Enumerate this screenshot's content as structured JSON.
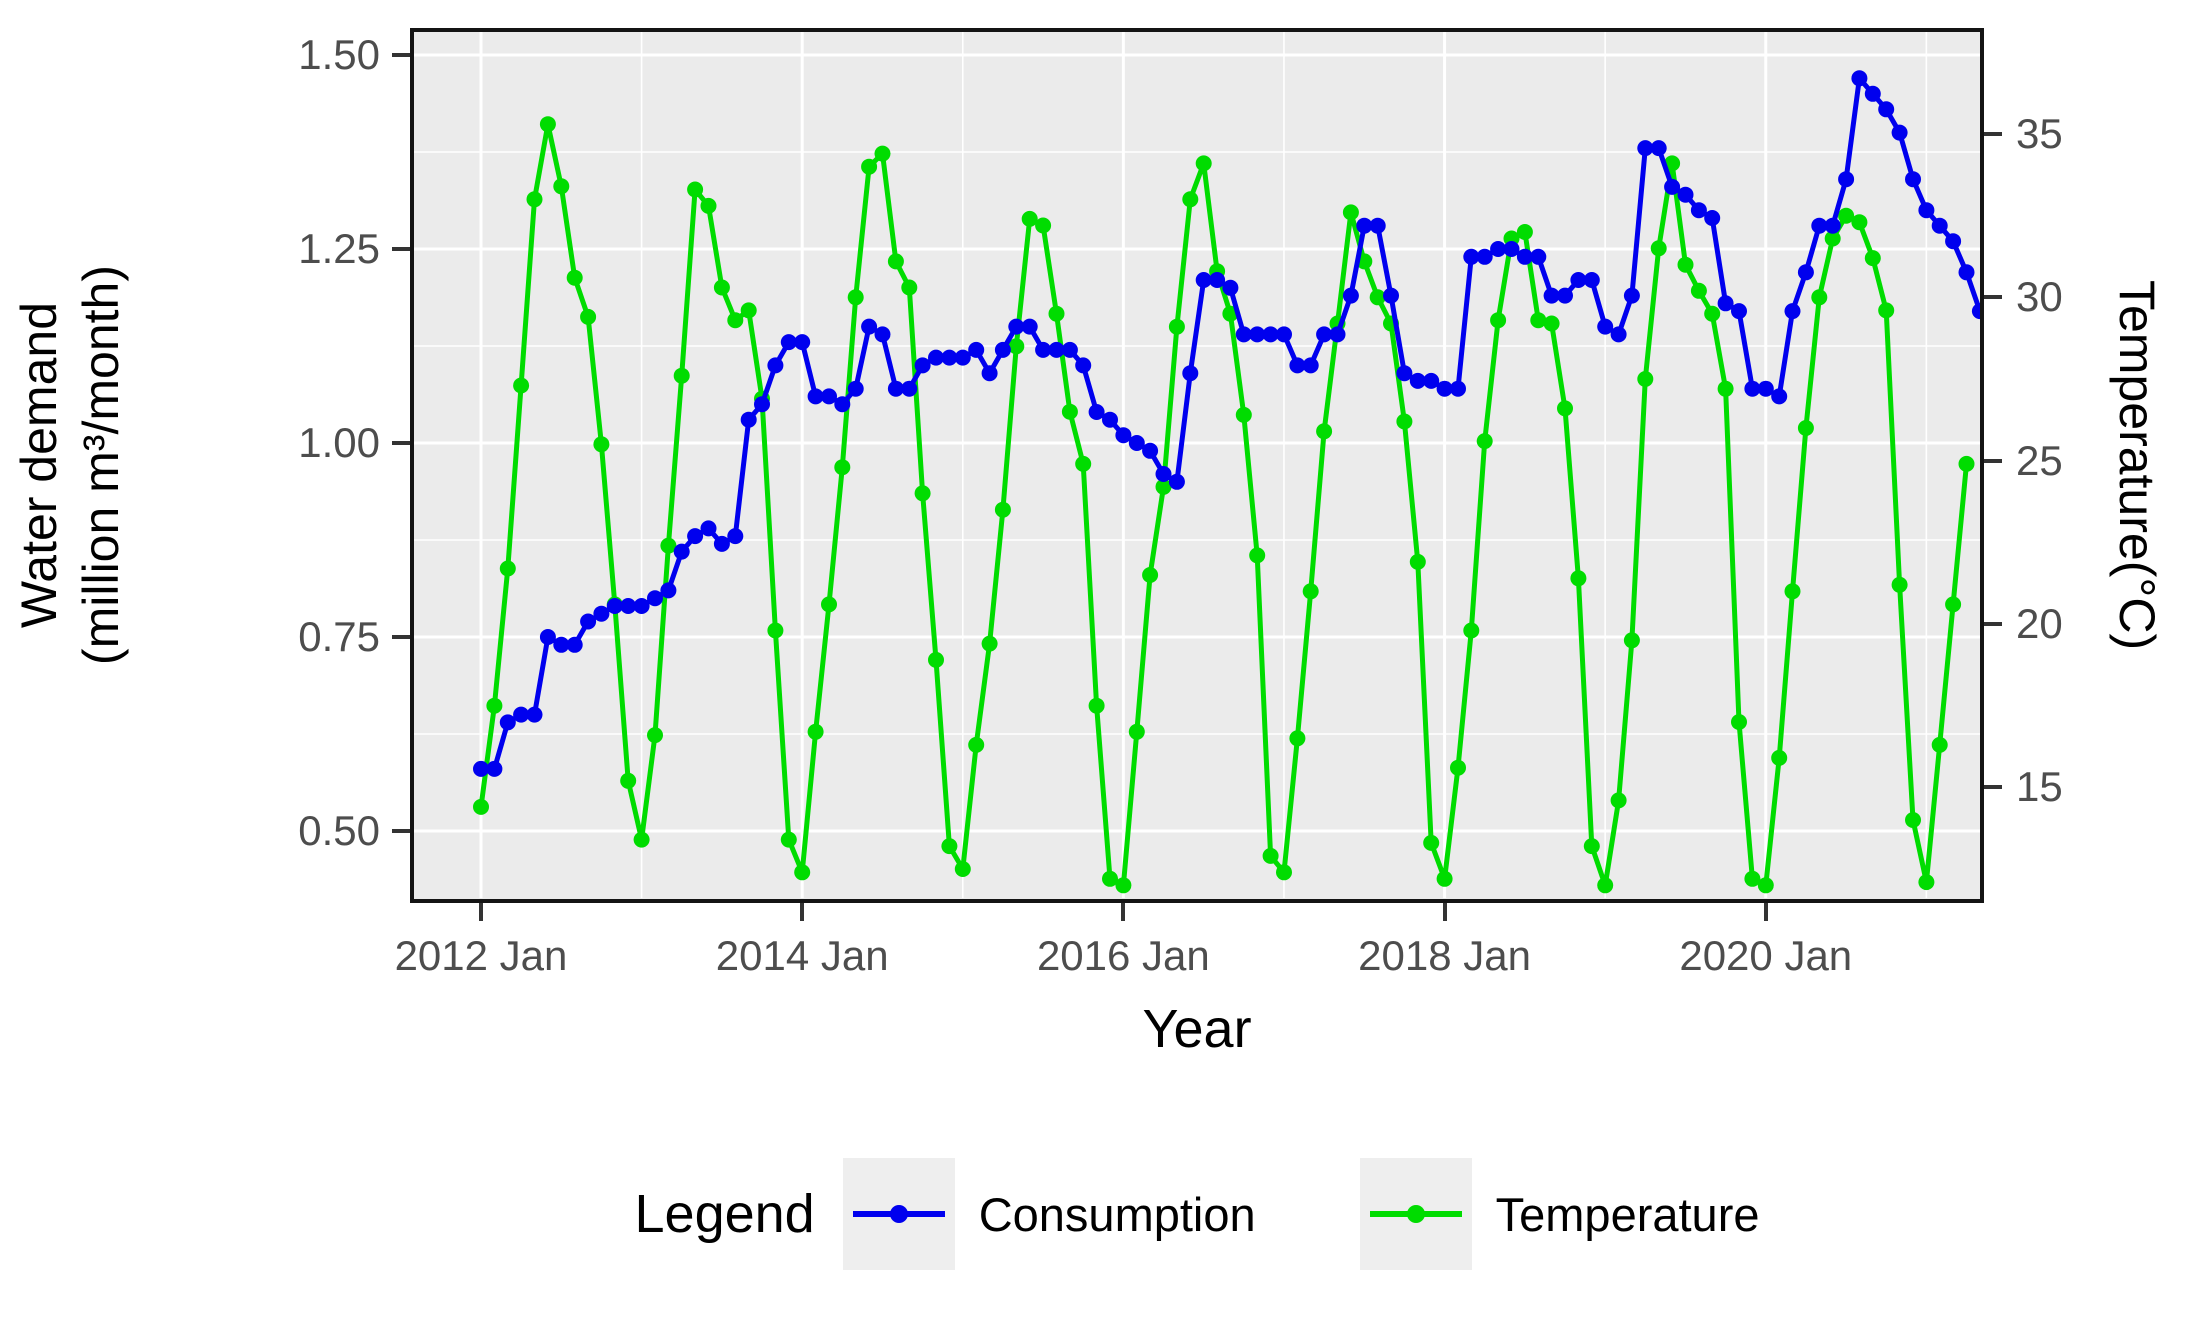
{
  "chart_data": {
    "type": "line",
    "title": "",
    "xlabel": "Year",
    "x_axis": {
      "title": "Year",
      "ticks": [
        {
          "label": "2012 Jan",
          "month_index": 0
        },
        {
          "label": "2014 Jan",
          "month_index": 24
        },
        {
          "label": "2016 Jan",
          "month_index": 48
        },
        {
          "label": "2018 Jan",
          "month_index": 72
        },
        {
          "label": "2020 Jan",
          "month_index": 96
        }
      ],
      "minor_month_indices": [
        12,
        36,
        60,
        84,
        108
      ]
    },
    "left_axis": {
      "title_line1": "Water demand",
      "title_line2": "(million m³/month)",
      "ticks": [
        {
          "label": "1.50",
          "value": 1.5
        },
        {
          "label": "1.25",
          "value": 1.25
        },
        {
          "label": "1.00",
          "value": 1.0
        },
        {
          "label": "0.75",
          "value": 0.75
        },
        {
          "label": "0.50",
          "value": 0.5
        }
      ],
      "minor_values": [
        1.375,
        1.125,
        0.875,
        0.625
      ]
    },
    "right_axis": {
      "title": "Temperature(°C)",
      "ticks": [
        {
          "label": "35",
          "value": 35
        },
        {
          "label": "30",
          "value": 30
        },
        {
          "label": "25",
          "value": 25
        },
        {
          "label": "20",
          "value": 20
        },
        {
          "label": "15",
          "value": 15
        }
      ]
    },
    "x": [
      "2012-01",
      "2012-02",
      "2012-03",
      "2012-04",
      "2012-05",
      "2012-06",
      "2012-07",
      "2012-08",
      "2012-09",
      "2012-10",
      "2012-11",
      "2012-12",
      "2013-01",
      "2013-02",
      "2013-03",
      "2013-04",
      "2013-05",
      "2013-06",
      "2013-07",
      "2013-08",
      "2013-09",
      "2013-10",
      "2013-11",
      "2013-12",
      "2014-01",
      "2014-02",
      "2014-03",
      "2014-04",
      "2014-05",
      "2014-06",
      "2014-07",
      "2014-08",
      "2014-09",
      "2014-10",
      "2014-11",
      "2014-12",
      "2015-01",
      "2015-02",
      "2015-03",
      "2015-04",
      "2015-05",
      "2015-06",
      "2015-07",
      "2015-08",
      "2015-09",
      "2015-10",
      "2015-11",
      "2015-12",
      "2016-01",
      "2016-02",
      "2016-03",
      "2016-04",
      "2016-05",
      "2016-06",
      "2016-07",
      "2016-08",
      "2016-09",
      "2016-10",
      "2016-11",
      "2016-12",
      "2017-01",
      "2017-02",
      "2017-03",
      "2017-04",
      "2017-05",
      "2017-06",
      "2017-07",
      "2017-08",
      "2017-09",
      "2017-10",
      "2017-11",
      "2017-12",
      "2018-01",
      "2018-02",
      "2018-03",
      "2018-04",
      "2018-05",
      "2018-06",
      "2018-07",
      "2018-08",
      "2018-09",
      "2018-10",
      "2018-11",
      "2018-12",
      "2019-01",
      "2019-02",
      "2019-03",
      "2019-04",
      "2019-05",
      "2019-06",
      "2019-07",
      "2019-08",
      "2019-09",
      "2019-10",
      "2019-11",
      "2019-12",
      "2020-01",
      "2020-02",
      "2020-03",
      "2020-04",
      "2020-05",
      "2020-06",
      "2020-07",
      "2020-08",
      "2020-09",
      "2020-10",
      "2020-11",
      "2020-12",
      "2021-01",
      "2021-02",
      "2021-03",
      "2021-04",
      "2021-05"
    ],
    "series": [
      {
        "name": "Temperature",
        "axis": "right",
        "color": "#00dc00",
        "values": [
          14.4,
          17.5,
          21.7,
          27.3,
          33.0,
          35.3,
          33.4,
          30.6,
          29.4,
          25.5,
          20.6,
          15.2,
          13.4,
          16.6,
          22.4,
          27.6,
          33.3,
          32.8,
          30.3,
          29.3,
          29.6,
          26.9,
          19.8,
          13.4,
          12.4,
          16.7,
          20.6,
          24.8,
          30.0,
          34.0,
          34.4,
          31.1,
          30.3,
          24.0,
          18.9,
          13.2,
          12.5,
          16.3,
          19.4,
          23.5,
          28.5,
          32.4,
          32.2,
          29.5,
          26.5,
          24.9,
          17.5,
          12.2,
          12.0,
          16.7,
          21.5,
          24.2,
          29.1,
          33.0,
          34.1,
          30.8,
          29.5,
          26.4,
          22.1,
          12.9,
          12.4,
          16.5,
          21.0,
          25.9,
          29.2,
          32.6,
          31.1,
          30.0,
          29.2,
          26.2,
          21.9,
          13.3,
          12.2,
          15.6,
          19.8,
          25.6,
          29.3,
          31.8,
          32.0,
          29.3,
          29.2,
          26.6,
          21.4,
          13.2,
          12.0,
          14.6,
          19.5,
          27.5,
          31.5,
          34.1,
          31.0,
          30.2,
          29.5,
          27.2,
          17.0,
          12.2,
          12.0,
          15.9,
          21.0,
          26.0,
          30.0,
          31.8,
          32.5,
          32.3,
          31.2,
          29.6,
          21.2,
          14.0,
          12.1,
          16.3,
          20.6,
          24.9,
          null
        ]
      },
      {
        "name": "Consumption",
        "axis": "left",
        "color": "#0000ee",
        "values": [
          0.58,
          0.58,
          0.64,
          0.65,
          0.65,
          0.75,
          0.74,
          0.74,
          0.77,
          0.78,
          0.79,
          0.79,
          0.79,
          0.8,
          0.81,
          0.86,
          0.88,
          0.89,
          0.87,
          0.88,
          1.03,
          1.05,
          1.1,
          1.13,
          1.13,
          1.06,
          1.06,
          1.05,
          1.07,
          1.15,
          1.14,
          1.07,
          1.07,
          1.1,
          1.11,
          1.11,
          1.11,
          1.12,
          1.09,
          1.12,
          1.15,
          1.15,
          1.12,
          1.12,
          1.12,
          1.1,
          1.04,
          1.03,
          1.01,
          1.0,
          0.99,
          0.96,
          0.95,
          1.09,
          1.21,
          1.21,
          1.2,
          1.14,
          1.14,
          1.14,
          1.14,
          1.1,
          1.1,
          1.14,
          1.14,
          1.19,
          1.28,
          1.28,
          1.19,
          1.09,
          1.08,
          1.08,
          1.07,
          1.07,
          1.24,
          1.24,
          1.25,
          1.25,
          1.24,
          1.24,
          1.19,
          1.19,
          1.21,
          1.21,
          1.15,
          1.14,
          1.19,
          1.38,
          1.38,
          1.33,
          1.32,
          1.3,
          1.29,
          1.18,
          1.17,
          1.07,
          1.07,
          1.06,
          1.17,
          1.22,
          1.28,
          1.28,
          1.34,
          1.47,
          1.45,
          1.43,
          1.4,
          1.34,
          1.3,
          1.28,
          1.26,
          1.22,
          1.17
        ]
      }
    ],
    "ylim_left": [
      0.47,
      1.53
    ],
    "ylim_right": [
      11.6,
      37.7
    ],
    "grid": true,
    "legend": {
      "title": "Legend",
      "position": "bottom",
      "items": [
        {
          "label": "Consumption",
          "color": "#0000ee"
        },
        {
          "label": "Temperature",
          "color": "#00dc00"
        }
      ]
    },
    "panel_background": "#ebebeb",
    "gridline_color": "#ffffff"
  }
}
